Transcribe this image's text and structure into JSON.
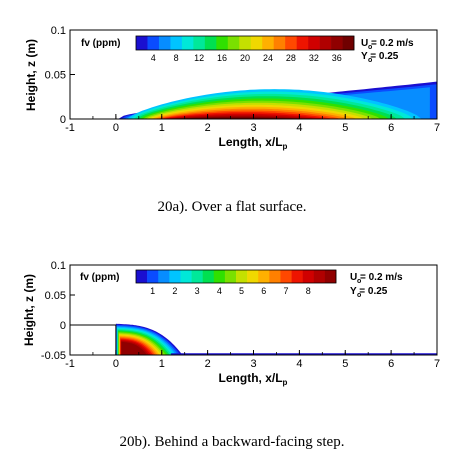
{
  "chart_data": [
    {
      "type": "heatmap",
      "xlabel_main": "Length, x/L",
      "xlabel_sub": "p",
      "ylabel": "Height, z (m)",
      "xlim": [
        -1,
        7
      ],
      "ylim": [
        0,
        0.1
      ],
      "x_ticks": [
        "-1",
        "0",
        "1",
        "2",
        "3",
        "4",
        "5",
        "6",
        "7"
      ],
      "y_ticks": [
        "0",
        "0.05",
        "0.1"
      ],
      "legend_title": "fv (ppm)",
      "legend_tick_labels": [
        "4",
        "8",
        "12",
        "16",
        "20",
        "24",
        "28",
        "32",
        "36"
      ],
      "legend_levels": [
        2,
        4,
        6,
        8,
        10,
        12,
        14,
        16,
        18,
        20,
        22,
        24,
        26,
        28,
        30,
        32,
        34,
        36,
        38
      ],
      "annotation_line1": "U  = 0.2 m/s",
      "annotation_line2": "Y  = 0.25",
      "annotation_sub": "o",
      "caption": "20a). Over a flat surface."
    },
    {
      "type": "heatmap",
      "xlabel_main": "Length, x/L",
      "xlabel_sub": "p",
      "ylabel": "Height, z (m)",
      "xlim": [
        -1,
        7
      ],
      "ylim": [
        -0.05,
        0.1
      ],
      "x_ticks": [
        "-1",
        "0",
        "1",
        "2",
        "3",
        "4",
        "5",
        "6",
        "7"
      ],
      "y_ticks": [
        "-0.05",
        "0",
        "0.05",
        "0.1"
      ],
      "legend_title": "fv (ppm)",
      "legend_tick_labels": [
        "1",
        "2",
        "3",
        "4",
        "5",
        "6",
        "7",
        "8"
      ],
      "legend_levels": [
        0.5,
        1,
        1.5,
        2,
        2.5,
        3,
        3.5,
        4,
        4.5,
        5,
        5.5,
        6,
        6.5,
        7,
        7.5,
        8,
        8.5,
        9
      ],
      "annotation_line1": "U  = 0.2 m/s",
      "annotation_line2": "Y  = 0.25",
      "annotation_sub": "o",
      "step": {
        "x": [
          -1,
          0
        ],
        "top": 0
      },
      "caption": "20b). Behind a backward-facing step."
    }
  ],
  "colors": {
    "colormap": [
      "#1a0fd0",
      "#0a4cff",
      "#078dff",
      "#00c4ff",
      "#00e8d8",
      "#00e89a",
      "#00e050",
      "#30e000",
      "#7ae000",
      "#c4e000",
      "#f0d800",
      "#ffb000",
      "#ff8000",
      "#ff4800",
      "#ee1400",
      "#d00000",
      "#b00000",
      "#900000",
      "#700000"
    ]
  }
}
